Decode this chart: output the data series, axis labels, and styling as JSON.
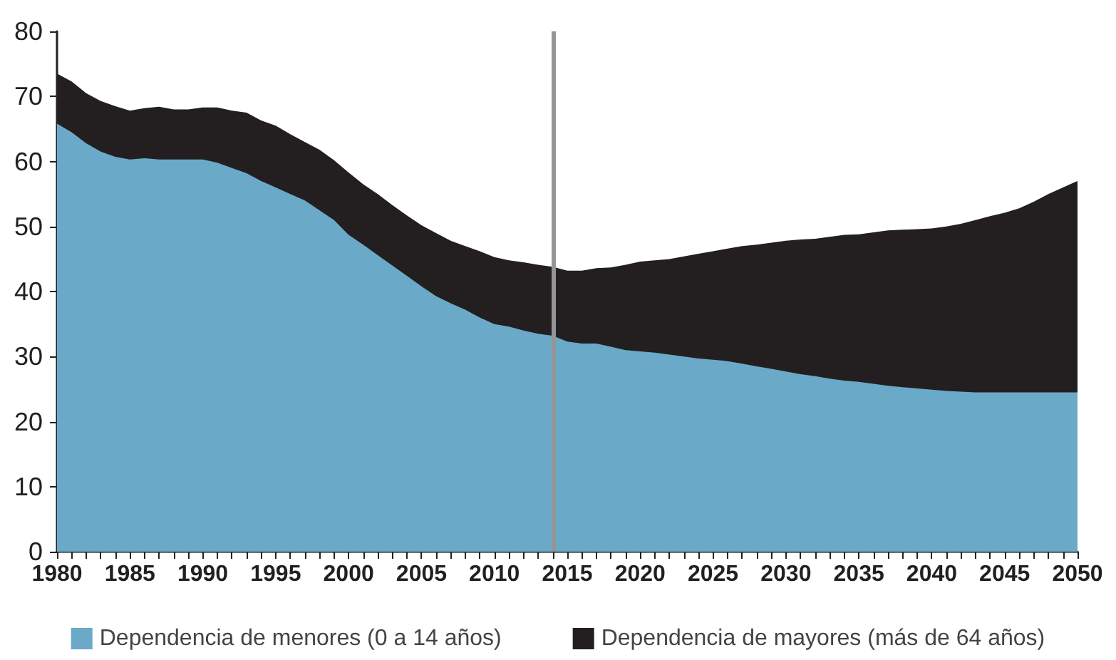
{
  "chart_data": {
    "type": "area",
    "stacked": true,
    "legend": "bottom",
    "grid": false,
    "x": [
      1980,
      1981,
      1982,
      1983,
      1984,
      1985,
      1986,
      1987,
      1988,
      1989,
      1990,
      1991,
      1992,
      1993,
      1994,
      1995,
      1996,
      1997,
      1998,
      1999,
      2000,
      2001,
      2002,
      2003,
      2004,
      2005,
      2006,
      2007,
      2008,
      2009,
      2010,
      2011,
      2012,
      2013,
      2014,
      2015,
      2016,
      2017,
      2018,
      2019,
      2020,
      2021,
      2022,
      2023,
      2024,
      2025,
      2026,
      2027,
      2028,
      2029,
      2030,
      2031,
      2032,
      2033,
      2034,
      2035,
      2036,
      2037,
      2038,
      2039,
      2040,
      2041,
      2042,
      2043,
      2044,
      2045,
      2046,
      2047,
      2048,
      2049,
      2050
    ],
    "series": [
      {
        "name": "Dependencia de menores (0 a 14 años)",
        "color": "#6aaac8",
        "values": [
          65.8,
          64.5,
          62.8,
          61.5,
          60.7,
          60.3,
          60.5,
          60.3,
          60.3,
          60.3,
          60.3,
          59.8,
          59.0,
          58.2,
          57.0,
          56.0,
          55.0,
          54.0,
          52.5,
          51.0,
          48.7,
          47.2,
          45.6,
          44.0,
          42.4,
          40.8,
          39.3,
          38.2,
          37.2,
          36.0,
          35.0,
          34.6,
          34.0,
          33.5,
          33.2,
          32.3,
          32.0,
          32.0,
          31.5,
          31.0,
          30.8,
          30.6,
          30.3,
          30.0,
          29.7,
          29.5,
          29.3,
          28.9,
          28.5,
          28.1,
          27.7,
          27.3,
          27.0,
          26.6,
          26.3,
          26.1,
          25.8,
          25.5,
          25.3,
          25.1,
          24.9,
          24.7,
          24.6,
          24.5,
          24.5,
          24.5,
          24.5,
          24.5,
          24.5,
          24.5,
          24.5
        ]
      },
      {
        "name": "Dependencia de mayores (más de 64 años)",
        "color": "#231f20",
        "values": [
          7.7,
          7.8,
          7.7,
          7.8,
          7.8,
          7.5,
          7.7,
          8.1,
          7.7,
          7.7,
          8.0,
          8.5,
          8.8,
          9.3,
          9.3,
          9.5,
          9.2,
          9.0,
          9.3,
          9.2,
          9.6,
          9.3,
          9.4,
          9.3,
          9.3,
          9.4,
          9.7,
          9.6,
          9.8,
          10.2,
          10.3,
          10.2,
          10.5,
          10.6,
          10.6,
          10.9,
          11.2,
          11.6,
          12.2,
          13.1,
          13.8,
          14.2,
          14.7,
          15.4,
          16.1,
          16.7,
          17.3,
          18.1,
          18.7,
          19.4,
          20.1,
          20.7,
          21.1,
          21.8,
          22.4,
          22.7,
          23.3,
          23.9,
          24.2,
          24.5,
          24.8,
          25.3,
          25.8,
          26.5,
          27.1,
          27.6,
          28.3,
          29.3,
          30.5,
          31.5,
          32.5
        ]
      }
    ],
    "xlim": [
      1980,
      2050
    ],
    "xticks": [
      1980,
      {
        "value": 1981,
        "label": null
      },
      {
        "value": 1982,
        "label": null
      },
      {
        "value": 1983,
        "label": null
      },
      {
        "value": 1984,
        "label": null
      },
      1985,
      {
        "value": 1986,
        "label": null
      },
      {
        "value": 1987,
        "label": null
      },
      {
        "value": 1988,
        "label": null
      },
      {
        "value": 1989,
        "label": null
      },
      1990,
      {
        "value": 1991,
        "label": null
      },
      {
        "value": 1992,
        "label": null
      },
      {
        "value": 1993,
        "label": null
      },
      {
        "value": 1994,
        "label": null
      },
      1995,
      {
        "value": 1996,
        "label": null
      },
      {
        "value": 1997,
        "label": null
      },
      {
        "value": 1998,
        "label": null
      },
      {
        "value": 1999,
        "label": null
      },
      2000,
      {
        "value": 2001,
        "label": null
      },
      {
        "value": 2002,
        "label": null
      },
      {
        "value": 2003,
        "label": null
      },
      {
        "value": 2004,
        "label": null
      },
      2005,
      {
        "value": 2006,
        "label": null
      },
      {
        "value": 2007,
        "label": null
      },
      {
        "value": 2008,
        "label": null
      },
      {
        "value": 2009,
        "label": null
      },
      2010,
      {
        "value": 2011,
        "label": null
      },
      {
        "value": 2012,
        "label": null
      },
      {
        "value": 2013,
        "label": null
      },
      {
        "value": 2014,
        "label": null
      },
      2015,
      {
        "value": 2016,
        "label": null
      },
      {
        "value": 2017,
        "label": null
      },
      {
        "value": 2018,
        "label": null
      },
      {
        "value": 2019,
        "label": null
      },
      2020,
      {
        "value": 2021,
        "label": null
      },
      {
        "value": 2022,
        "label": null
      },
      {
        "value": 2023,
        "label": null
      },
      {
        "value": 2024,
        "label": null
      },
      2025,
      {
        "value": 2026,
        "label": null
      },
      {
        "value": 2027,
        "label": null
      },
      {
        "value": 2028,
        "label": null
      },
      {
        "value": 2029,
        "label": null
      },
      2030,
      {
        "value": 2031,
        "label": null
      },
      {
        "value": 2032,
        "label": null
      },
      {
        "value": 2033,
        "label": null
      },
      {
        "value": 2034,
        "label": null
      },
      2035,
      {
        "value": 2036,
        "label": null
      },
      {
        "value": 2037,
        "label": null
      },
      {
        "value": 2038,
        "label": null
      },
      {
        "value": 2039,
        "label": null
      },
      2040,
      {
        "value": 2041,
        "label": null
      },
      {
        "value": 2042,
        "label": null
      },
      {
        "value": 2043,
        "label": null
      },
      {
        "value": 2044,
        "label": null
      },
      2045,
      {
        "value": 2046,
        "label": null
      },
      {
        "value": 2047,
        "label": null
      },
      {
        "value": 2048,
        "label": null
      },
      {
        "value": 2049,
        "label": null
      },
      2050
    ],
    "ylim": [
      0,
      80
    ],
    "yticks": [
      0,
      10,
      20,
      30,
      40,
      50,
      60,
      70,
      80
    ],
    "ref_lines": [
      {
        "axis": "x",
        "value": 2014,
        "color": "#939598"
      }
    ]
  }
}
